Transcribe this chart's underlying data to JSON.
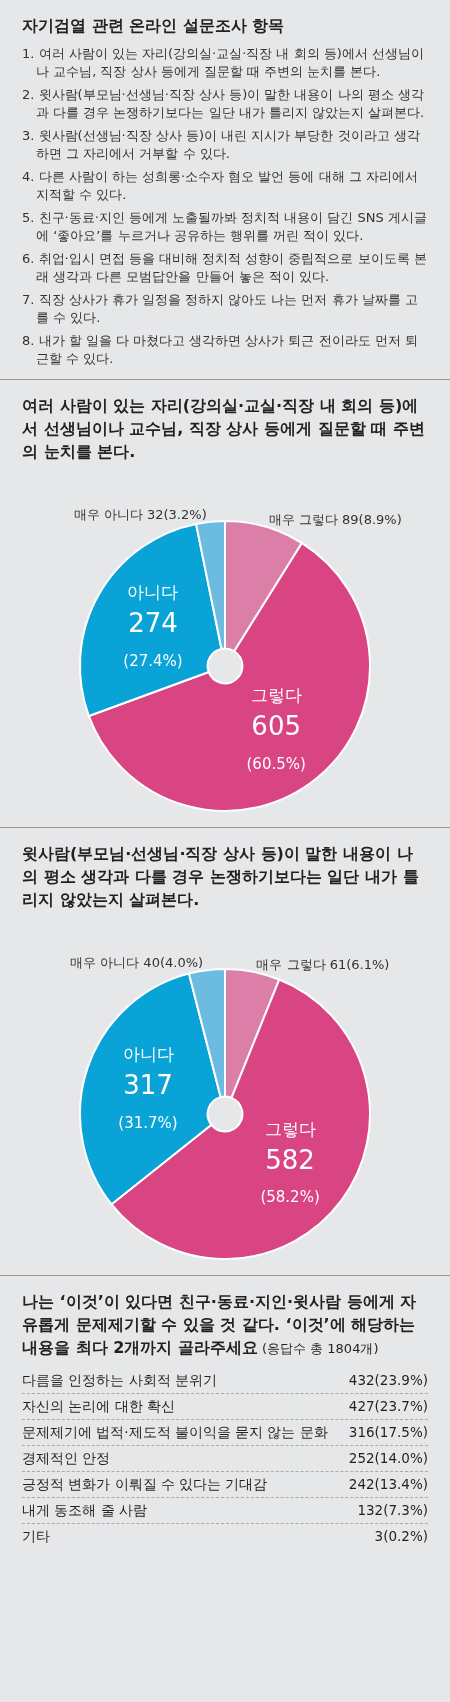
{
  "chart_data": [
    {
      "type": "other",
      "title": "자기검열 관련 온라인 설문조사 항목",
      "annotations": [
        "1. 여러 사람이 있는 자리(강의실·교실·직장 내 회의 등)에서 선생님이나 교수님, 직장 상사 등에게 질문할 때 주변의 눈치를 본다.",
        "2. 윗사람(부모님·선생님·직장 상사 등)이 말한 내용이 나의 평소 생각과 다를 경우 논쟁하기보다는 일단 내가 틀리지 않았는지 살펴본다.",
        "3. 윗사람(선생님·직장 상사 등)이 내린 지시가 부당한 것이라고 생각하면 그 자리에서 거부할 수 있다.",
        "4. 다른 사람이 하는 성희롱·소수자 혐오 발언 등에 대해 그 자리에서 지적할 수 있다.",
        "5. 친구·동료·지인 등에게 노출될까봐 정치적 내용이 담긴 SNS 게시글에 ‘좋아요’를 누르거나 공유하는 행위를 꺼린 적이 있다.",
        "6. 취업·입시 면접 등을 대비해 정치적 성향이 중립적으로 보이도록 본래 생각과 다른 모범답안을 만들어 놓은 적이 있다.",
        "7. 직장 상사가 휴가 일정을 정하지 않아도 나는 먼저 휴가 날짜를 고를 수 있다.",
        "8. 내가 할 일을 다 마쳤다고 생각하면 상사가 퇴근 전이라도 먼저 퇴근할 수 있다."
      ]
    },
    {
      "type": "pie",
      "title": "여러 사람이 있는 자리(강의실·교실·직장 내 회의 등)에서 선생님이나 교수님, 직장 상사 등에게 질문할 때 주변의 눈치를 본다.",
      "categories": [
        "매우 그렇다",
        "그렇다",
        "아니다",
        "매우 아니다"
      ],
      "values": [
        89,
        605,
        274,
        32
      ],
      "value_labels": [
        "89(8.9%)",
        "605(60.5%)",
        "274(27.4%)",
        "32(3.2%)"
      ],
      "colors": [
        "#dc7fa8",
        "#d94482",
        "#0aa3d8",
        "#6cbce2"
      ]
    },
    {
      "type": "pie",
      "title": "윗사람(부모님·선생님·직장 상사 등)이 말한 내용이 나의 평소 생각과 다를 경우 논쟁하기보다는 일단 내가 틀리지 않았는지 살펴본다.",
      "categories": [
        "매우 그렇다",
        "그렇다",
        "아니다",
        "매우 아니다"
      ],
      "values": [
        61,
        582,
        317,
        40
      ],
      "value_labels": [
        "61(6.1%)",
        "582(58.2%)",
        "317(31.7%)",
        "40(4.0%)"
      ],
      "colors": [
        "#dc7fa8",
        "#d94482",
        "#0aa3d8",
        "#6cbce2"
      ]
    },
    {
      "type": "other",
      "title": "나는 ‘이것’이 있다면 친구·동료·지인·윗사람 등에게 자유롭게 문제제기할 수 있을 것 같다. ‘이것’에 해당하는 내용을 최다 2개까지 골라주세요",
      "subtitle": "(응답수 총 1804개)",
      "categories": [
        "다름을 인정하는 사회적 분위기",
        "자신의 논리에 대한 확신",
        "문제제기에 법적·제도적 불이익을 묻지 않는 문화",
        "경제적인 안정",
        "긍정적 변화가 이뤄질 수 있다는 기대감",
        "내게 동조해 줄 사람",
        "기타"
      ],
      "value_labels": [
        "432(23.9%)",
        "427(23.7%)",
        "316(17.5%)",
        "252(14.0%)",
        "242(13.4%)",
        "132(7.3%)",
        "3(0.2%)"
      ]
    }
  ]
}
